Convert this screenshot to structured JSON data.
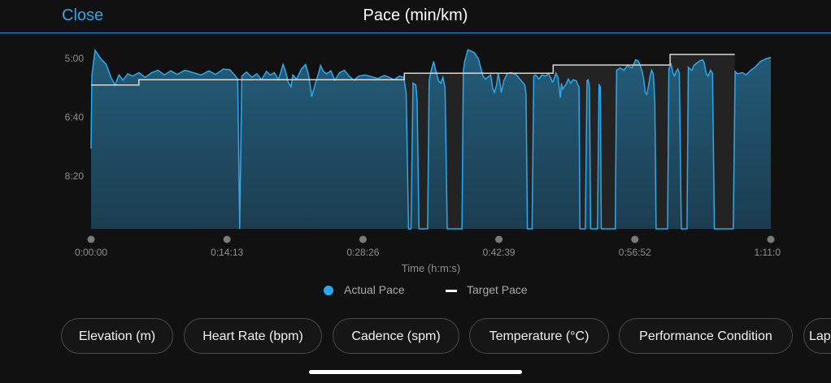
{
  "header": {
    "close_label": "Close",
    "title": "Pace (min/km)"
  },
  "chart_data": {
    "type": "area",
    "xlabel": "Time (h:m:s)",
    "ylabel": "",
    "x_tick_labels": [
      "0:00:00",
      "0:14:13",
      "0:28:26",
      "0:42:39",
      "0:56:52",
      "1:11:0"
    ],
    "y_tick_labels": [
      "5:00",
      "6:40",
      "8:20"
    ],
    "y_tick_values": [
      300,
      400,
      500
    ],
    "ylim": [
      300,
      590
    ],
    "y_inverted": true,
    "x_range_seconds": [
      0,
      4266
    ],
    "grid": false,
    "legend_position": "bottom-center",
    "colors": {
      "actual": "#2aa9ee",
      "actual_fill": "#1f5570",
      "target": "#d8d8d8"
    },
    "series": [
      {
        "name": "Actual Pace",
        "points": [
          [
            0,
            454
          ],
          [
            5,
            329
          ],
          [
            25,
            286
          ],
          [
            60,
            300
          ],
          [
            95,
            310
          ],
          [
            125,
            332
          ],
          [
            150,
            345
          ],
          [
            175,
            328
          ],
          [
            200,
            337
          ],
          [
            230,
            326
          ],
          [
            260,
            330
          ],
          [
            300,
            324
          ],
          [
            340,
            332
          ],
          [
            380,
            324
          ],
          [
            420,
            320
          ],
          [
            460,
            328
          ],
          [
            500,
            321
          ],
          [
            540,
            327
          ],
          [
            590,
            320
          ],
          [
            640,
            324
          ],
          [
            690,
            328
          ],
          [
            740,
            321
          ],
          [
            780,
            327
          ],
          [
            830,
            318
          ],
          [
            870,
            319
          ],
          [
            900,
            328
          ],
          [
            920,
            335
          ],
          [
            933,
            590
          ],
          [
            946,
            330
          ],
          [
            975,
            323
          ],
          [
            1010,
            332
          ],
          [
            1040,
            326
          ],
          [
            1070,
            336
          ],
          [
            1100,
            322
          ],
          [
            1125,
            328
          ],
          [
            1150,
            324
          ],
          [
            1175,
            336
          ],
          [
            1190,
            324
          ],
          [
            1205,
            310
          ],
          [
            1218,
            320
          ],
          [
            1238,
            341
          ],
          [
            1255,
            348
          ],
          [
            1266,
            328
          ],
          [
            1290,
            335
          ],
          [
            1320,
            318
          ],
          [
            1346,
            310
          ],
          [
            1365,
            328
          ],
          [
            1385,
            365
          ],
          [
            1405,
            345
          ],
          [
            1428,
            325
          ],
          [
            1440,
            312
          ],
          [
            1458,
            322
          ],
          [
            1478,
            326
          ],
          [
            1505,
            321
          ],
          [
            1530,
            337
          ],
          [
            1560,
            324
          ],
          [
            1590,
            320
          ],
          [
            1620,
            330
          ],
          [
            1650,
            337
          ],
          [
            1680,
            330
          ],
          [
            1720,
            328
          ],
          [
            1760,
            331
          ],
          [
            1800,
            334
          ],
          [
            1840,
            329
          ],
          [
            1870,
            332
          ],
          [
            1900,
            336
          ],
          [
            1935,
            330
          ],
          [
            1962,
            332
          ],
          [
            1978,
            360
          ],
          [
            1992,
            590
          ],
          [
            2008,
            590
          ],
          [
            2020,
            342
          ],
          [
            2038,
            345
          ],
          [
            2046,
            372
          ],
          [
            2058,
            590
          ],
          [
            2112,
            590
          ],
          [
            2122,
            338
          ],
          [
            2135,
            320
          ],
          [
            2150,
            305
          ],
          [
            2162,
            319
          ],
          [
            2180,
            338
          ],
          [
            2195,
            342
          ],
          [
            2208,
            332
          ],
          [
            2222,
            350
          ],
          [
            2235,
            590
          ],
          [
            2328,
            590
          ],
          [
            2336,
            322
          ],
          [
            2345,
            305
          ],
          [
            2365,
            285
          ],
          [
            2405,
            290
          ],
          [
            2430,
            300
          ],
          [
            2445,
            315
          ],
          [
            2460,
            330
          ],
          [
            2475,
            335
          ],
          [
            2488,
            332
          ],
          [
            2508,
            328
          ],
          [
            2520,
            350
          ],
          [
            2532,
            358
          ],
          [
            2545,
            345
          ],
          [
            2555,
            325
          ],
          [
            2565,
            340
          ],
          [
            2575,
            358
          ],
          [
            2590,
            338
          ],
          [
            2612,
            325
          ],
          [
            2640,
            324
          ],
          [
            2670,
            328
          ],
          [
            2700,
            338
          ],
          [
            2722,
            345
          ],
          [
            2730,
            362
          ],
          [
            2738,
            590
          ],
          [
            2768,
            590
          ],
          [
            2778,
            330
          ],
          [
            2790,
            328
          ],
          [
            2810,
            335
          ],
          [
            2830,
            328
          ],
          [
            2852,
            330
          ],
          [
            2870,
            326
          ],
          [
            2885,
            333
          ],
          [
            2895,
            340
          ],
          [
            2902,
            338
          ],
          [
            2918,
            325
          ],
          [
            2930,
            332
          ],
          [
            2945,
            367
          ],
          [
            2952,
            342
          ],
          [
            2960,
            352
          ],
          [
            2978,
            345
          ],
          [
            2995,
            335
          ],
          [
            3010,
            342
          ],
          [
            3025,
            336
          ],
          [
            3045,
            338
          ],
          [
            3055,
            345
          ],
          [
            3062,
            348
          ],
          [
            3068,
            590
          ],
          [
            3102,
            590
          ],
          [
            3112,
            338
          ],
          [
            3120,
            336
          ],
          [
            3128,
            350
          ],
          [
            3135,
            590
          ],
          [
            3178,
            590
          ],
          [
            3188,
            345
          ],
          [
            3196,
            348
          ],
          [
            3202,
            590
          ],
          [
            3290,
            590
          ],
          [
            3298,
            320
          ],
          [
            3320,
            316
          ],
          [
            3345,
            320
          ],
          [
            3365,
            312
          ],
          [
            3395,
            316
          ],
          [
            3418,
            302
          ],
          [
            3432,
            304
          ],
          [
            3445,
            310
          ],
          [
            3458,
            322
          ],
          [
            3468,
            335
          ],
          [
            3478,
            358
          ],
          [
            3488,
            361
          ],
          [
            3498,
            347
          ],
          [
            3508,
            330
          ],
          [
            3518,
            320
          ],
          [
            3528,
            326
          ],
          [
            3538,
            370
          ],
          [
            3546,
            590
          ],
          [
            3618,
            590
          ],
          [
            3626,
            318
          ],
          [
            3640,
            310
          ],
          [
            3652,
            325
          ],
          [
            3662,
            330
          ],
          [
            3672,
            322
          ],
          [
            3682,
            318
          ],
          [
            3692,
            325
          ],
          [
            3704,
            590
          ],
          [
            3740,
            590
          ],
          [
            3748,
            315
          ],
          [
            3760,
            318
          ],
          [
            3772,
            320
          ],
          [
            3782,
            312
          ],
          [
            3800,
            308
          ],
          [
            3820,
            304
          ],
          [
            3838,
            302
          ],
          [
            3848,
            308
          ],
          [
            3860,
            325
          ],
          [
            3872,
            330
          ],
          [
            3888,
            320
          ],
          [
            3900,
            325
          ],
          [
            3912,
            590
          ],
          [
            4030,
            590
          ],
          [
            4042,
            322
          ],
          [
            4056,
            326
          ],
          [
            4072,
            325
          ],
          [
            4090,
            324
          ],
          [
            4110,
            328
          ],
          [
            4140,
            320
          ],
          [
            4170,
            314
          ],
          [
            4200,
            305
          ],
          [
            4240,
            300
          ],
          [
            4266,
            298
          ]
        ]
      },
      {
        "name": "Target Pace",
        "points": [
          [
            0,
            345
          ],
          [
            300,
            345
          ],
          [
            300,
            336
          ],
          [
            1966,
            336
          ],
          [
            1966,
            325
          ],
          [
            2900,
            325
          ],
          [
            2900,
            311
          ],
          [
            3634,
            311
          ],
          [
            3634,
            293
          ],
          [
            4040,
            293
          ]
        ]
      }
    ]
  },
  "legend": {
    "actual_label": "Actual Pace",
    "target_label": "Target Pace"
  },
  "pills": [
    "Elevation (m)",
    "Heart Rate (bpm)",
    "Cadence (spm)",
    "Temperature (°C)",
    "Performance Condition",
    "Lap Pace"
  ]
}
